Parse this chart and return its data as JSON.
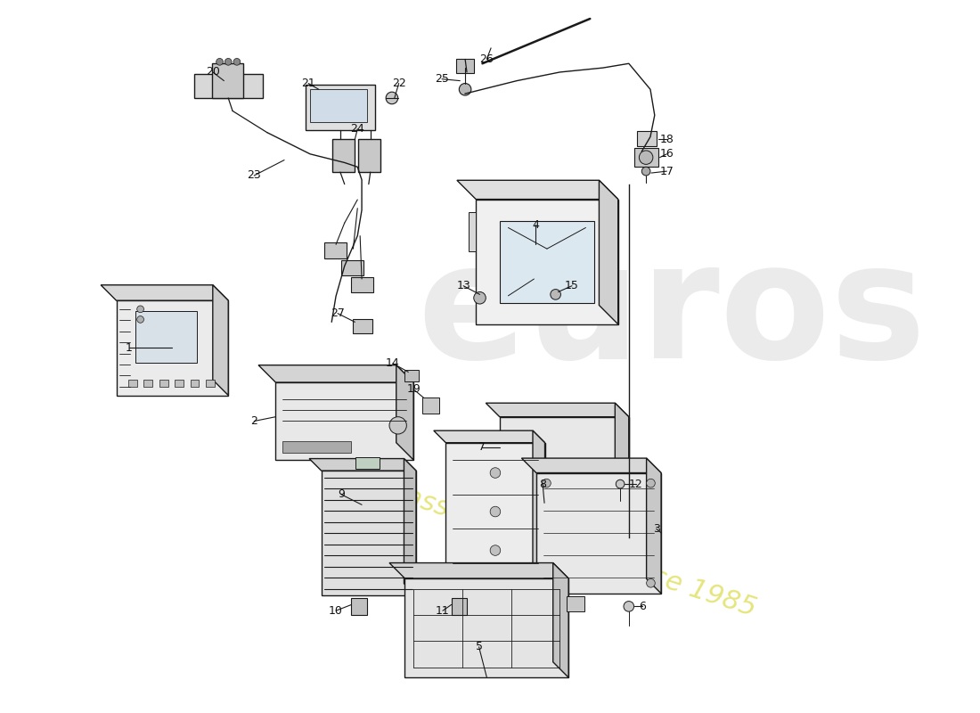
{
  "bg_color": "#ffffff",
  "lc": "#1a1a1a",
  "lw": 1.0,
  "watermark_color": "#cccccc",
  "watermark_yellow": "#d4cc00",
  "figsize": [
    11.0,
    8.0
  ],
  "dpi": 100
}
